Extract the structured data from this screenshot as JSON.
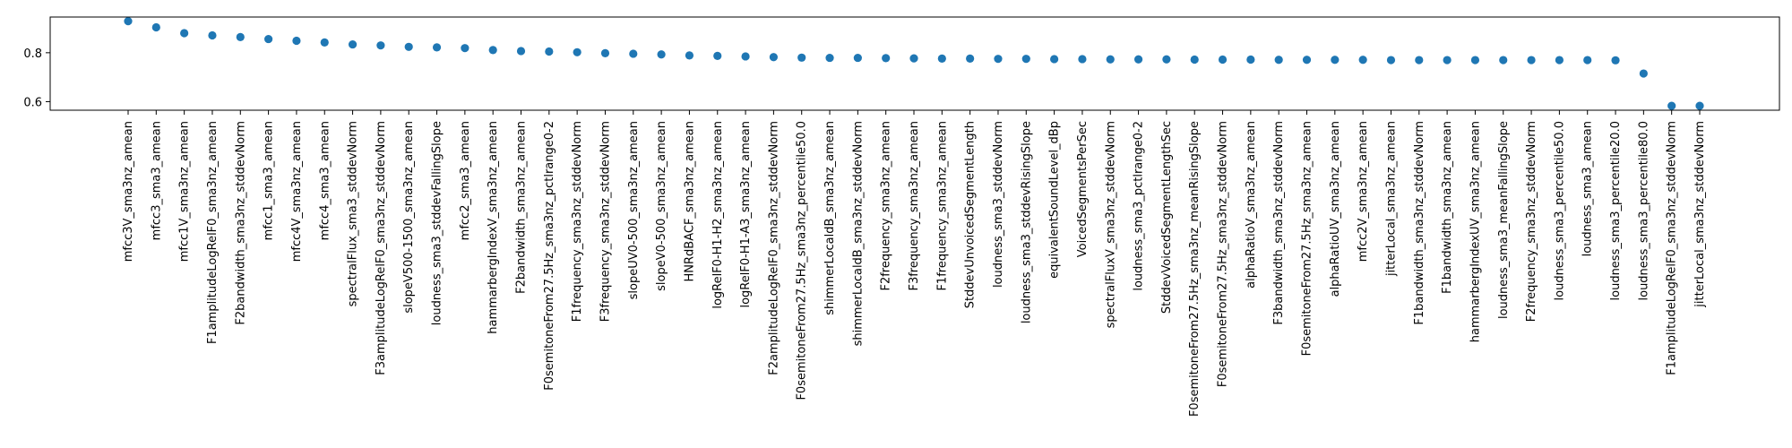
{
  "chart_data": {
    "type": "scatter",
    "title": "",
    "xlabel": "",
    "ylabel": "",
    "ylim": [
      0.565,
      0.946
    ],
    "yticks": [
      0.6,
      0.8
    ],
    "ytick_labels": [
      "0.6",
      "0.8"
    ],
    "grid": false,
    "legend": "none",
    "marker_color": "#1f77b4",
    "categories": [
      "mfcc3V_sma3nz_amean",
      "mfcc3_sma3_amean",
      "mfcc1V_sma3nz_amean",
      "F1amplitudeLogRelF0_sma3nz_amean",
      "F2bandwidth_sma3nz_stddevNorm",
      "mfcc1_sma3_amean",
      "mfcc4V_sma3nz_amean",
      "mfcc4_sma3_amean",
      "spectralFlux_sma3_stddevNorm",
      "F3amplitudeLogRelF0_sma3nz_stddevNorm",
      "slopeV500-1500_sma3nz_amean",
      "loudness_sma3_stddevFallingSlope",
      "mfcc2_sma3_amean",
      "hammarbergIndexV_sma3nz_amean",
      "F2bandwidth_sma3nz_amean",
      "F0semitoneFrom27.5Hz_sma3nz_pctlrange0-2",
      "F1frequency_sma3nz_stddevNorm",
      "F3frequency_sma3nz_stddevNorm",
      "slopeUV0-500_sma3nz_amean",
      "slopeV0-500_sma3nz_amean",
      "HNRdBACF_sma3nz_amean",
      "logRelF0-H1-H2_sma3nz_amean",
      "logRelF0-H1-A3_sma3nz_amean",
      "F2amplitudeLogRelF0_sma3nz_stddevNorm",
      "F0semitoneFrom27.5Hz_sma3nz_percentile50.0",
      "shimmerLocaldB_sma3nz_amean",
      "shimmerLocaldB_sma3nz_stddevNorm",
      "F2frequency_sma3nz_amean",
      "F3frequency_sma3nz_amean",
      "F1frequency_sma3nz_amean",
      "StddevUnvoicedSegmentLength",
      "loudness_sma3_stddevNorm",
      "loudness_sma3_stddevRisingSlope",
      "equivalentSoundLevel_dBp",
      "VoicedSegmentsPerSec",
      "spectralFluxV_sma3nz_stddevNorm",
      "loudness_sma3_pctlrange0-2",
      "StddevVoicedSegmentLengthSec",
      "F0semitoneFrom27.5Hz_sma3nz_meanRisingSlope",
      "F0semitoneFrom27.5Hz_sma3nz_stddevNorm",
      "alphaRatioV_sma3nz_amean",
      "F3bandwidth_sma3nz_stddevNorm",
      "F0semitoneFrom27.5Hz_sma3nz_amean",
      "alphaRatioUV_sma3nz_amean",
      "mfcc2V_sma3nz_amean",
      "jitterLocal_sma3nz_amean",
      "F1bandwidth_sma3nz_stddevNorm",
      "F1bandwidth_sma3nz_amean",
      "hammarbergIndexUV_sma3nz_amean",
      "loudness_sma3_meanFallingSlope",
      "F2frequency_sma3nz_stddevNorm",
      "loudness_sma3_percentile50.0",
      "loudness_sma3_amean",
      "loudness_sma3_percentile20.0",
      "loudness_sma3_percentile80.0",
      "F1amplitudeLogRelF0_sma3nz_stddevNorm",
      "jitterLocal_sma3nz_stddevNorm"
    ],
    "values": [
      0.929,
      0.904,
      0.88,
      0.871,
      0.864,
      0.856,
      0.849,
      0.842,
      0.834,
      0.83,
      0.824,
      0.822,
      0.819,
      0.811,
      0.807,
      0.805,
      0.802,
      0.798,
      0.796,
      0.793,
      0.789,
      0.787,
      0.785,
      0.782,
      0.78,
      0.779,
      0.779,
      0.778,
      0.777,
      0.776,
      0.776,
      0.775,
      0.775,
      0.774,
      0.774,
      0.773,
      0.773,
      0.773,
      0.772,
      0.772,
      0.772,
      0.771,
      0.771,
      0.771,
      0.771,
      0.77,
      0.77,
      0.77,
      0.77,
      0.77,
      0.77,
      0.77,
      0.77,
      0.769,
      0.715,
      0.583,
      0.583
    ]
  }
}
